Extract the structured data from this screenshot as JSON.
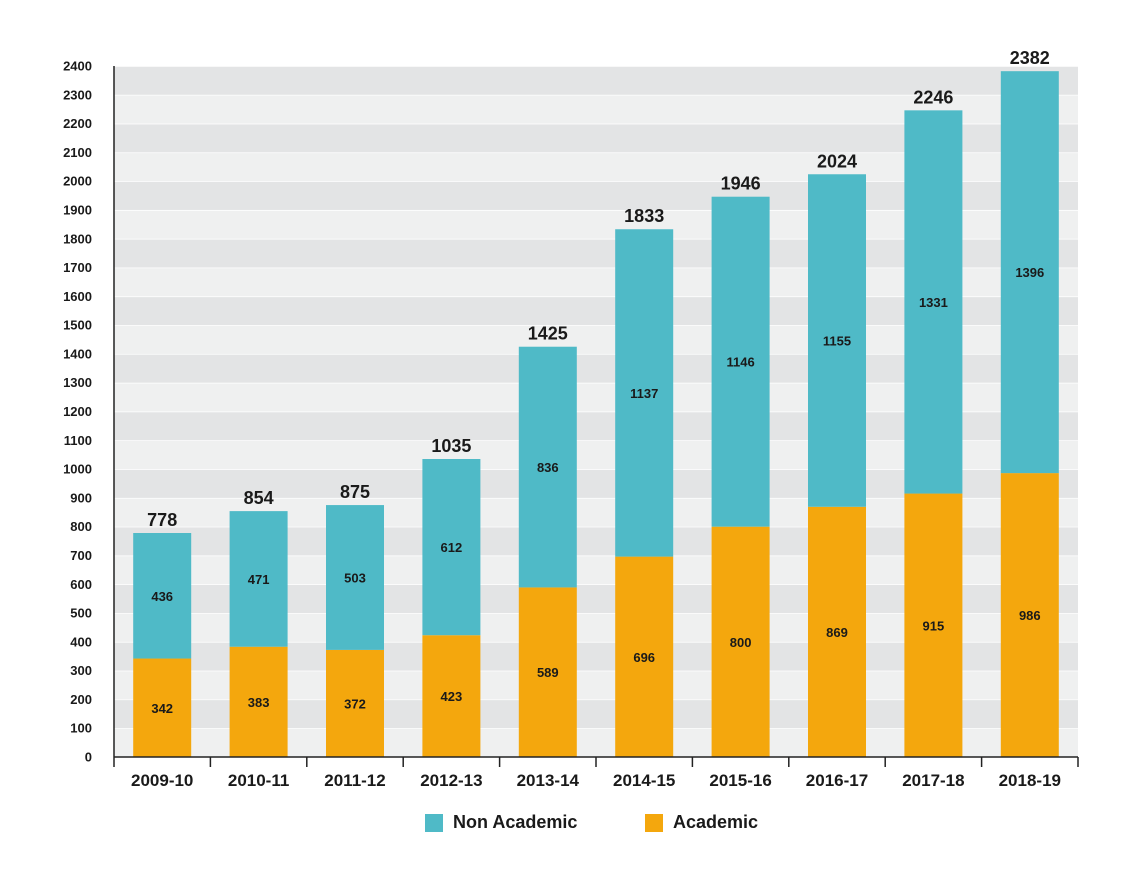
{
  "colors": {
    "non_academic": "#4fbac7",
    "academic": "#f4a70d",
    "band_dark": "#e3e4e5",
    "band_light": "#eff0f0",
    "axis": "#222222"
  },
  "legend": {
    "non_academic": "Non Academic",
    "academic": "Academic"
  },
  "chart_data": {
    "type": "bar",
    "stacked": true,
    "categories": [
      "2009-10",
      "2010-11",
      "2011-12",
      "2012-13",
      "2013-14",
      "2014-15",
      "2015-16",
      "2016-17",
      "2017-18",
      "2018-19"
    ],
    "series": [
      {
        "name": "Academic",
        "values": [
          342,
          383,
          372,
          423,
          589,
          696,
          800,
          869,
          915,
          986
        ]
      },
      {
        "name": "Non Academic",
        "values": [
          436,
          471,
          503,
          612,
          836,
          1137,
          1146,
          1155,
          1331,
          1396
        ]
      }
    ],
    "totals": [
      778,
      854,
      875,
      1035,
      1425,
      1833,
      1946,
      2024,
      2246,
      2382
    ],
    "yticks": [
      0,
      100,
      200,
      300,
      400,
      500,
      600,
      700,
      800,
      900,
      1000,
      1100,
      1200,
      1300,
      1400,
      1500,
      1600,
      1700,
      1800,
      1900,
      2000,
      2100,
      2200,
      2300,
      2400
    ],
    "ylim": [
      0,
      2400
    ],
    "grid": "horizontal alternating bands",
    "legend_position": "bottom"
  }
}
